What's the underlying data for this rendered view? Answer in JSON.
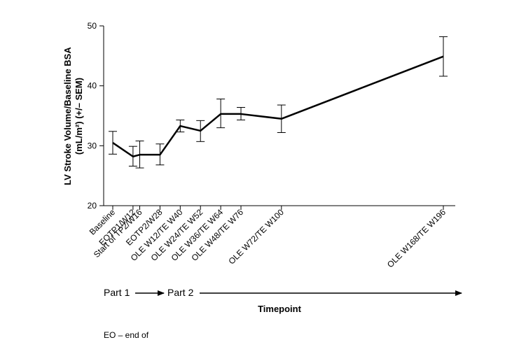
{
  "chart_data": {
    "type": "line",
    "categories": [
      "Baseline",
      "EOTP1/W12",
      "Start of TP2/W16",
      "EOTP2/W28",
      "OLE W12/TE W40",
      "OLE W24/TE W52",
      "OLE W36/TE W64",
      "OLE W48/TE W76",
      "OLE W72/TE W100",
      "OLE W168/TE W196"
    ],
    "x": [
      0,
      12,
      16,
      28,
      40,
      52,
      64,
      76,
      100,
      196
    ],
    "series": [
      {
        "values": [
          30.5,
          28.2,
          28.5,
          28.5,
          33.3,
          32.5,
          35.3,
          35.3,
          34.5,
          44.9
        ],
        "err_upper": [
          32.4,
          29.9,
          30.8,
          30.3,
          34.3,
          34.2,
          37.8,
          36.4,
          36.8,
          48.2
        ],
        "err_lower": [
          28.6,
          26.6,
          26.3,
          26.8,
          32.3,
          30.7,
          33.0,
          34.3,
          32.2,
          41.6
        ]
      }
    ],
    "ylabel_line1": "LV Stroke Volume/Baseline BSA",
    "ylabel_line2": "(mL/m²) (+/– SEM)",
    "xlabel": "Timepoint",
    "ylim": [
      20,
      50
    ],
    "yticks": [
      "20",
      "30",
      "40",
      "50"
    ],
    "part1_label": "Part 1",
    "part2_label": "Part 2",
    "grid": false,
    "line_color": "#000000"
  },
  "footnote": "EO – end of"
}
